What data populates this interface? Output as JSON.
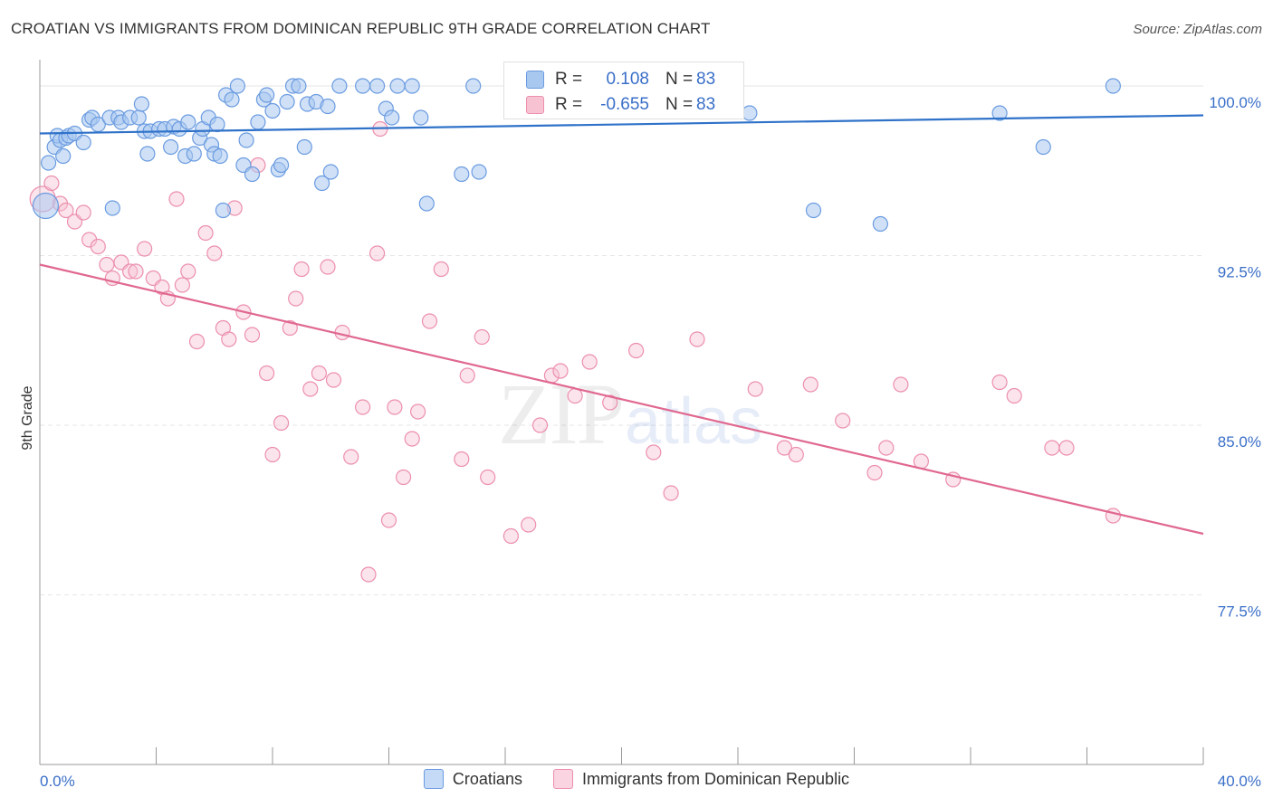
{
  "title": "CROATIAN VS IMMIGRANTS FROM DOMINICAN REPUBLIC 9TH GRADE CORRELATION CHART",
  "source": "Source: ZipAtlas.com",
  "watermark": "ZIPatlas",
  "legend": {
    "row1": {
      "r_label": "R =",
      "r_value": "0.108",
      "n_label": "N =",
      "n_value": "83"
    },
    "row2": {
      "r_label": "R =",
      "r_value": "-0.655",
      "n_label": "N =",
      "n_value": "83"
    }
  },
  "colors": {
    "blue_fill": "#a9c8f0",
    "blue_stroke": "#6a9be0",
    "blue_line": "#2f72c9",
    "pink_fill": "#f7c3d3",
    "pink_stroke": "#ec8fad",
    "pink_line": "#e0688f",
    "axis_text": "#3a6fc8",
    "grid": "#e6e6e6"
  },
  "chart_data": {
    "type": "scatter",
    "title": "CROATIAN VS IMMIGRANTS FROM DOMINICAN REPUBLIC 9TH GRADE CORRELATION CHART",
    "xlabel": "",
    "ylabel": "9th Grade",
    "xlim": [
      0,
      40
    ],
    "ylim": [
      70.0,
      101.0
    ],
    "x_tick_labels": [
      "0.0%",
      "40.0%"
    ],
    "y_ticks": [
      77.5,
      85.0,
      92.5,
      100.0
    ],
    "y_tick_labels": [
      "77.5%",
      "85.0%",
      "92.5%",
      "100.0%"
    ],
    "grid": true,
    "legend_position": "bottom",
    "series": [
      {
        "name": "Croatians",
        "trend": {
          "x": [
            0,
            40
          ],
          "y": [
            97.9,
            98.7
          ]
        },
        "points": [
          [
            0.2,
            94.7
          ],
          [
            0.3,
            96.6
          ],
          [
            0.5,
            97.3
          ],
          [
            0.6,
            97.8
          ],
          [
            0.7,
            97.6
          ],
          [
            0.8,
            96.9
          ],
          [
            0.9,
            97.7
          ],
          [
            1.0,
            97.8
          ],
          [
            1.2,
            97.9
          ],
          [
            1.5,
            97.5
          ],
          [
            1.7,
            98.5
          ],
          [
            1.8,
            98.6
          ],
          [
            2.0,
            98.3
          ],
          [
            2.4,
            98.6
          ],
          [
            2.5,
            94.6
          ],
          [
            2.7,
            98.6
          ],
          [
            2.8,
            98.4
          ],
          [
            3.1,
            98.6
          ],
          [
            3.4,
            98.6
          ],
          [
            3.5,
            99.2
          ],
          [
            3.6,
            98.0
          ],
          [
            3.7,
            97.0
          ],
          [
            3.8,
            98.0
          ],
          [
            4.1,
            98.1
          ],
          [
            4.3,
            98.1
          ],
          [
            4.5,
            97.3
          ],
          [
            4.6,
            98.2
          ],
          [
            4.8,
            98.1
          ],
          [
            5.0,
            96.9
          ],
          [
            5.1,
            98.4
          ],
          [
            5.3,
            97.0
          ],
          [
            5.5,
            97.7
          ],
          [
            5.6,
            98.1
          ],
          [
            5.8,
            98.6
          ],
          [
            5.9,
            97.4
          ],
          [
            6.0,
            97.0
          ],
          [
            6.1,
            98.3
          ],
          [
            6.2,
            96.9
          ],
          [
            6.3,
            94.5
          ],
          [
            6.4,
            99.6
          ],
          [
            6.6,
            99.4
          ],
          [
            6.8,
            100.0
          ],
          [
            7.0,
            96.5
          ],
          [
            7.1,
            97.6
          ],
          [
            7.3,
            96.1
          ],
          [
            7.5,
            98.4
          ],
          [
            7.7,
            99.4
          ],
          [
            7.8,
            99.6
          ],
          [
            8.0,
            98.9
          ],
          [
            8.2,
            96.3
          ],
          [
            8.3,
            96.5
          ],
          [
            8.5,
            99.3
          ],
          [
            8.7,
            100.0
          ],
          [
            8.9,
            100.0
          ],
          [
            9.1,
            97.3
          ],
          [
            9.2,
            99.2
          ],
          [
            9.5,
            99.3
          ],
          [
            9.7,
            95.7
          ],
          [
            9.9,
            99.1
          ],
          [
            10.0,
            96.2
          ],
          [
            10.3,
            100.0
          ],
          [
            11.1,
            100.0
          ],
          [
            11.6,
            100.0
          ],
          [
            11.9,
            99.0
          ],
          [
            12.1,
            98.6
          ],
          [
            12.3,
            100.0
          ],
          [
            12.8,
            100.0
          ],
          [
            13.1,
            98.6
          ],
          [
            13.3,
            94.8
          ],
          [
            14.5,
            96.1
          ],
          [
            14.9,
            100.0
          ],
          [
            15.1,
            96.2
          ],
          [
            16.7,
            99.0
          ],
          [
            17.3,
            98.9
          ],
          [
            18.2,
            99.5
          ],
          [
            21.9,
            99.6
          ],
          [
            23.4,
            98.9
          ],
          [
            24.4,
            98.8
          ],
          [
            26.6,
            94.5
          ],
          [
            28.9,
            93.9
          ],
          [
            33.0,
            98.8
          ],
          [
            34.5,
            97.3
          ],
          [
            36.9,
            100.0
          ]
        ]
      },
      {
        "name": "Immigrants from Dominican Republic",
        "trend": {
          "x": [
            0,
            40
          ],
          "y": [
            92.1,
            80.2
          ]
        },
        "points": [
          [
            0.1,
            95.0
          ],
          [
            0.4,
            95.7
          ],
          [
            0.7,
            94.8
          ],
          [
            0.9,
            94.5
          ],
          [
            1.2,
            94.0
          ],
          [
            1.5,
            94.4
          ],
          [
            1.7,
            93.2
          ],
          [
            2.0,
            92.9
          ],
          [
            2.3,
            92.1
          ],
          [
            2.5,
            91.5
          ],
          [
            2.8,
            92.2
          ],
          [
            3.1,
            91.8
          ],
          [
            3.3,
            91.8
          ],
          [
            3.6,
            92.8
          ],
          [
            3.9,
            91.5
          ],
          [
            4.2,
            91.1
          ],
          [
            4.4,
            90.6
          ],
          [
            4.7,
            95.0
          ],
          [
            4.9,
            91.2
          ],
          [
            5.1,
            91.8
          ],
          [
            5.4,
            88.7
          ],
          [
            5.7,
            93.5
          ],
          [
            6.0,
            92.6
          ],
          [
            6.3,
            89.3
          ],
          [
            6.5,
            88.8
          ],
          [
            6.7,
            94.6
          ],
          [
            7.0,
            90.0
          ],
          [
            7.3,
            89.0
          ],
          [
            7.5,
            96.5
          ],
          [
            7.8,
            87.3
          ],
          [
            8.0,
            83.7
          ],
          [
            8.3,
            85.1
          ],
          [
            8.6,
            89.3
          ],
          [
            8.8,
            90.6
          ],
          [
            9.0,
            91.9
          ],
          [
            9.3,
            86.6
          ],
          [
            9.6,
            87.3
          ],
          [
            9.9,
            92.0
          ],
          [
            10.1,
            87.0
          ],
          [
            10.4,
            89.1
          ],
          [
            10.7,
            83.6
          ],
          [
            11.1,
            85.8
          ],
          [
            11.3,
            78.4
          ],
          [
            11.6,
            92.6
          ],
          [
            11.7,
            98.1
          ],
          [
            12.0,
            80.8
          ],
          [
            12.2,
            85.8
          ],
          [
            12.5,
            82.7
          ],
          [
            12.8,
            84.4
          ],
          [
            13.0,
            85.6
          ],
          [
            13.4,
            89.6
          ],
          [
            13.8,
            91.9
          ],
          [
            14.5,
            83.5
          ],
          [
            14.7,
            87.2
          ],
          [
            15.2,
            88.9
          ],
          [
            15.4,
            82.7
          ],
          [
            16.2,
            80.1
          ],
          [
            16.8,
            80.6
          ],
          [
            17.2,
            85.0
          ],
          [
            17.6,
            87.2
          ],
          [
            17.9,
            87.4
          ],
          [
            18.4,
            86.3
          ],
          [
            18.9,
            87.8
          ],
          [
            19.6,
            86.0
          ],
          [
            20.5,
            88.3
          ],
          [
            21.1,
            83.8
          ],
          [
            21.7,
            82.0
          ],
          [
            22.6,
            88.8
          ],
          [
            24.6,
            86.6
          ],
          [
            25.6,
            84.0
          ],
          [
            26.0,
            83.7
          ],
          [
            26.5,
            86.8
          ],
          [
            27.6,
            85.2
          ],
          [
            28.7,
            82.9
          ],
          [
            29.1,
            84.0
          ],
          [
            29.6,
            86.8
          ],
          [
            30.3,
            83.4
          ],
          [
            31.4,
            82.6
          ],
          [
            33.0,
            86.9
          ],
          [
            33.5,
            86.3
          ],
          [
            34.8,
            84.0
          ],
          [
            35.3,
            84.0
          ],
          [
            36.9,
            81.0
          ]
        ]
      }
    ]
  }
}
